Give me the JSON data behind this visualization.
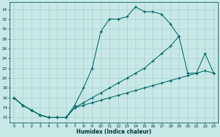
{
  "xlabel": "Humidex (Indice chaleur)",
  "bg_color": "#c8e8e8",
  "grid_color": "#a8cece",
  "line_color": "#006666",
  "xlim": [
    -0.5,
    23.5
  ],
  "ylim": [
    11,
    35.5
  ],
  "yticks": [
    12,
    14,
    16,
    18,
    20,
    22,
    24,
    26,
    28,
    30,
    32,
    34
  ],
  "xticks": [
    0,
    1,
    2,
    3,
    4,
    5,
    6,
    7,
    8,
    9,
    10,
    11,
    12,
    13,
    14,
    15,
    16,
    17,
    18,
    19,
    20,
    21,
    22,
    23
  ],
  "line1_x": [
    0,
    1,
    2,
    3,
    4,
    5,
    6,
    7,
    8,
    9,
    10,
    11,
    12,
    13,
    14,
    15,
    16,
    17,
    18,
    19
  ],
  "line1_y": [
    16,
    14.5,
    13.5,
    12.5,
    12,
    12,
    12,
    14.5,
    18,
    22,
    29.5,
    32,
    32,
    32.5,
    34.5,
    33.5,
    33.5,
    33,
    31,
    28.5
  ],
  "line2_x": [
    0,
    1,
    2,
    3,
    4,
    5,
    6,
    7,
    8,
    9,
    10,
    11,
    12,
    13,
    14,
    15,
    16,
    17,
    18,
    19,
    20,
    21,
    22,
    23
  ],
  "line2_y": [
    16,
    14.5,
    13.5,
    12.5,
    12,
    12,
    12,
    14,
    15,
    16,
    17,
    18,
    19,
    20,
    21,
    22,
    23.5,
    25,
    26.5,
    28.5,
    21,
    21,
    25,
    21
  ],
  "line3_x": [
    0,
    1,
    2,
    3,
    4,
    5,
    6,
    7,
    8,
    9,
    10,
    11,
    12,
    13,
    14,
    15,
    16,
    17,
    18,
    19,
    20,
    21,
    22,
    23
  ],
  "line3_y": [
    16,
    14.5,
    13.5,
    12.5,
    12,
    12,
    12,
    14,
    14.5,
    15,
    15.5,
    16,
    16.5,
    17,
    17.5,
    18,
    18.5,
    19,
    19.5,
    20,
    20.5,
    21,
    21.5,
    21
  ]
}
